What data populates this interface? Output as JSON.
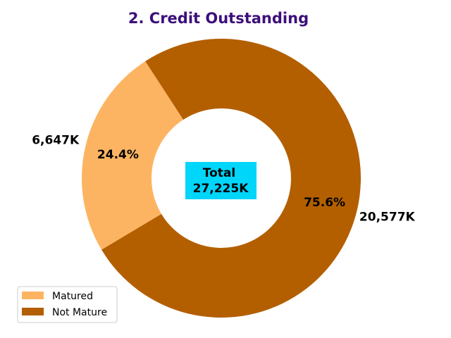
{
  "chart_data": {
    "type": "pie",
    "title": "2. Credit Outstanding",
    "title_color": "#3d0f7a",
    "categories": [
      "Matured",
      "Not Mature"
    ],
    "values": [
      6647,
      20577
    ],
    "value_labels": [
      "6,647K",
      "20,577K"
    ],
    "percent_labels": [
      "24.4%",
      "75.6%"
    ],
    "colors": [
      "#fdb462",
      "#b35f00"
    ],
    "donut": true,
    "center_label": {
      "line1": "Total",
      "line2": "27,225K",
      "background": "#00d5fa"
    },
    "legend_placement": "lower-left"
  }
}
